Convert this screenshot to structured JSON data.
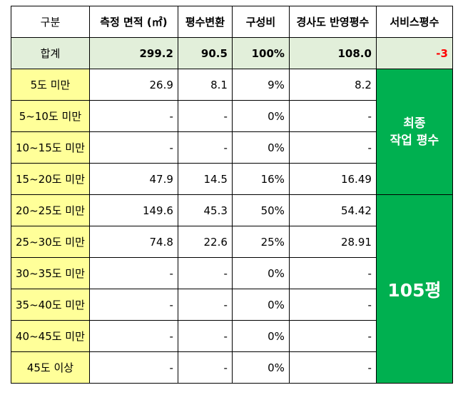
{
  "headers": [
    "구분",
    "측정 면적 (㎡)",
    "평수변환",
    "구성비",
    "경사도 반영평수",
    "서비스평수"
  ],
  "total": {
    "label": "합계",
    "area": "299.2",
    "pyeong": "90.5",
    "ratio": "100%",
    "slope_pyeong": "108.0",
    "service": "-3"
  },
  "rows": [
    {
      "label": "5도 미만",
      "area": "26.9",
      "pyeong": "8.1",
      "ratio": "9%",
      "slope_pyeong": "8.2"
    },
    {
      "label": "5~10도 미만",
      "area": "-",
      "pyeong": "-",
      "ratio": "0%",
      "slope_pyeong": "-"
    },
    {
      "label": "10~15도 미만",
      "area": "-",
      "pyeong": "-",
      "ratio": "0%",
      "slope_pyeong": "-"
    },
    {
      "label": "15~20도 미만",
      "area": "47.9",
      "pyeong": "14.5",
      "ratio": "16%",
      "slope_pyeong": "16.49"
    },
    {
      "label": "20~25도 미만",
      "area": "149.6",
      "pyeong": "45.3",
      "ratio": "50%",
      "slope_pyeong": "54.42"
    },
    {
      "label": "25~30도 미만",
      "area": "74.8",
      "pyeong": "22.6",
      "ratio": "25%",
      "slope_pyeong": "28.91"
    },
    {
      "label": "30~35도 미만",
      "area": "-",
      "pyeong": "-",
      "ratio": "0%",
      "slope_pyeong": "-"
    },
    {
      "label": "35~40도 미만",
      "area": "-",
      "pyeong": "-",
      "ratio": "0%",
      "slope_pyeong": "-"
    },
    {
      "label": "40~45도 미만",
      "area": "-",
      "pyeong": "-",
      "ratio": "0%",
      "slope_pyeong": "-"
    },
    {
      "label": "45도 이상",
      "area": "-",
      "pyeong": "-",
      "ratio": "0%",
      "slope_pyeong": "-"
    }
  ],
  "final_label": {
    "line1": "최종",
    "line2": "작업 평수"
  },
  "final_value": "105평",
  "colors": {
    "header_bg": "#ffffff",
    "total_bg": "#e2efda",
    "label_bg": "#ffff99",
    "highlight_bg": "#00b050",
    "negative_text": "#ff0000"
  }
}
